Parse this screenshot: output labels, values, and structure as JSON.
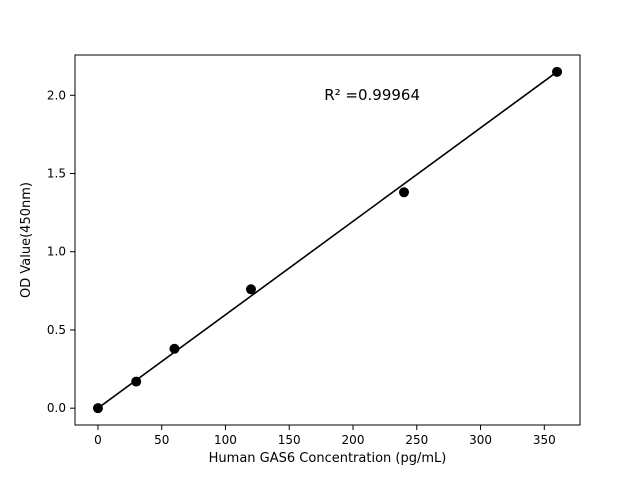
{
  "figure": {
    "background": "#ffffff"
  },
  "chart_data": {
    "type": "scatter",
    "title": "",
    "xlabel": "Human GAS6 Concentration (pg/mL)",
    "ylabel": "OD Value(450nm)",
    "x": [
      0,
      30,
      60,
      120,
      240,
      360
    ],
    "y": [
      0.0,
      0.17,
      0.38,
      0.76,
      1.38,
      2.15
    ],
    "fit_line": {
      "x1": 0,
      "y1": 0.0,
      "x2": 360,
      "y2": 2.15
    },
    "xticks": [
      0,
      50,
      100,
      150,
      200,
      250,
      300,
      350
    ],
    "xtick_labels": [
      "0",
      "50",
      "100",
      "150",
      "200",
      "250",
      "300",
      "350"
    ],
    "yticks": [
      0.0,
      0.5,
      1.0,
      1.5,
      2.0
    ],
    "ytick_labels": [
      "0.0",
      "0.5",
      "1.0",
      "1.5",
      "2.0"
    ],
    "xlim": [
      -18,
      378
    ],
    "ylim": [
      -0.1075,
      2.2575
    ],
    "grid": false,
    "legend": null,
    "annotation": {
      "text": "R² =0.99964",
      "x": 215,
      "y": 1.97
    },
    "marker_color": "#000000",
    "line_color": "#000000",
    "axis_color": "#000000"
  }
}
